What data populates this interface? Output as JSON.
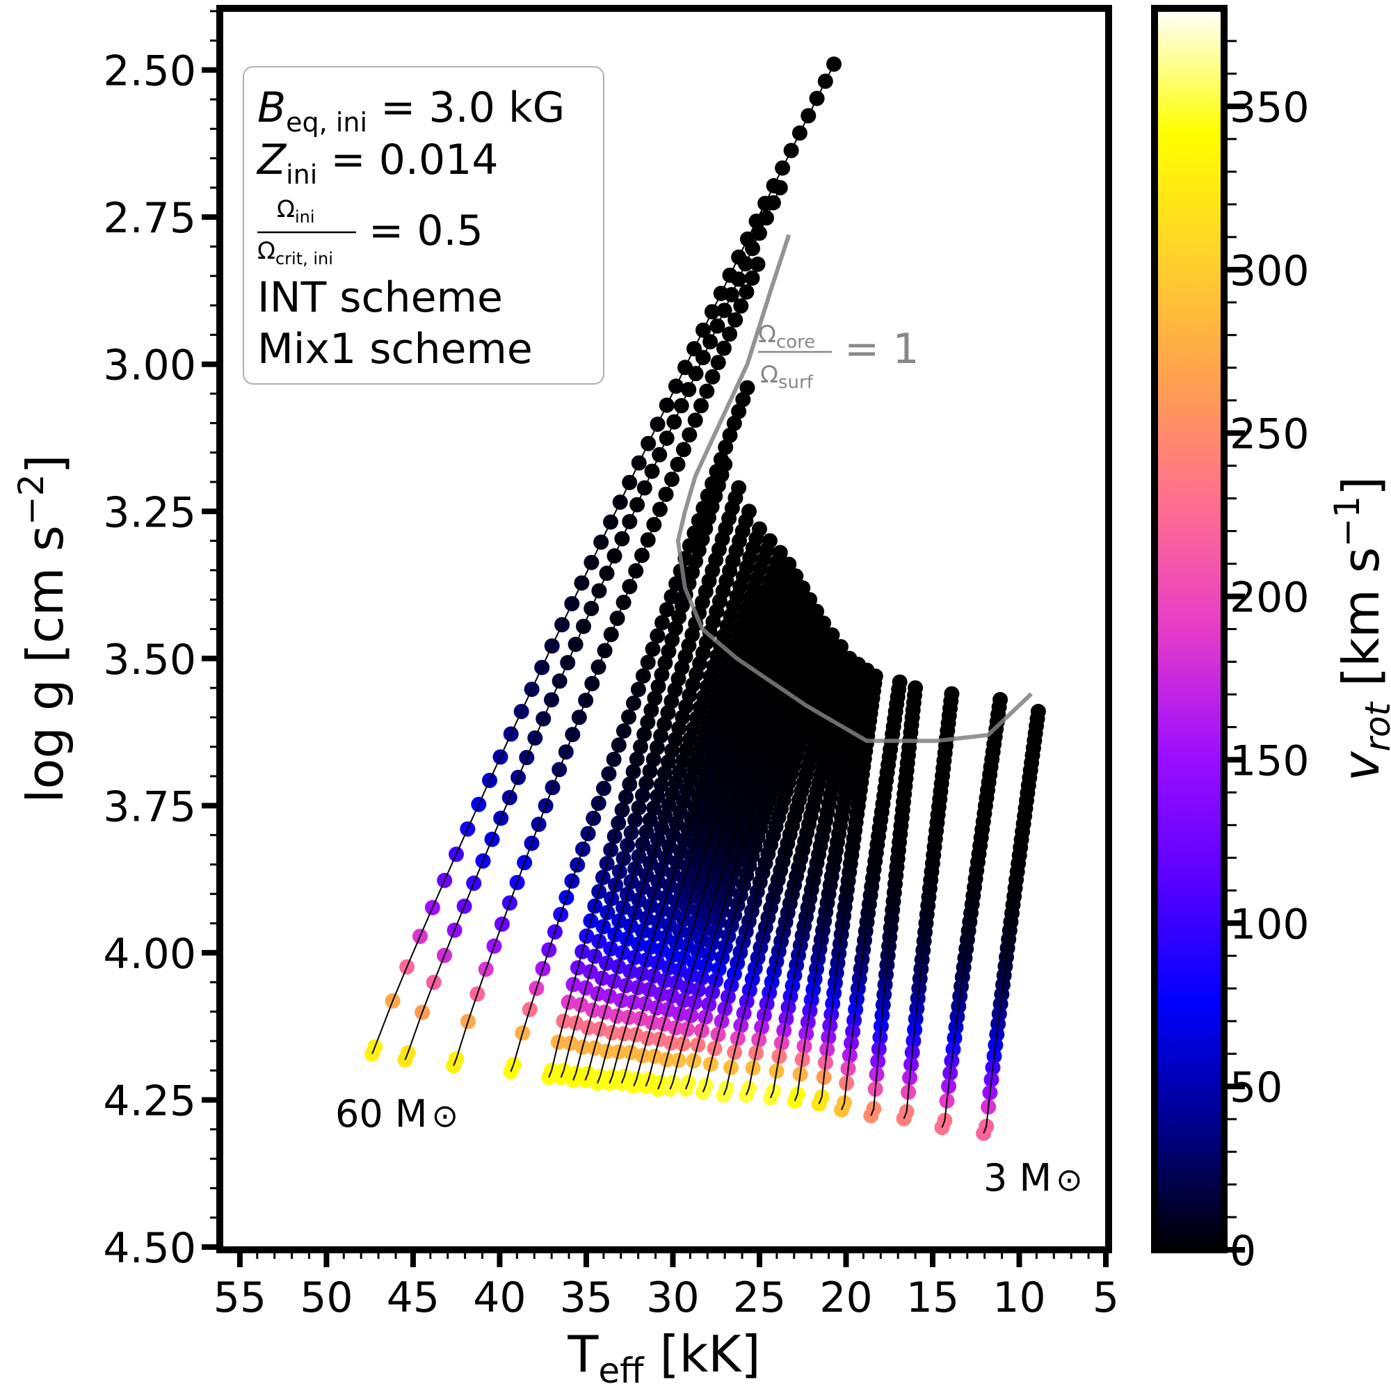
{
  "chart_data": {
    "type": "scatter",
    "xlabel": "T",
    "xlabel_sub": "eff",
    "xlabel_unit": " [kK]",
    "ylabel": "log g [cm s",
    "ylabel_sup": "−2",
    "ylabel_end": "]",
    "xlim": [
      56,
      5
    ],
    "ylim": [
      4.5,
      2.4
    ],
    "xticks": [
      "55",
      "50",
      "45",
      "40",
      "35",
      "30",
      "25",
      "20",
      "15",
      "10",
      "5"
    ],
    "xtick_values": [
      55,
      50,
      45,
      40,
      35,
      30,
      25,
      20,
      15,
      10,
      5
    ],
    "yticks": [
      "2.50",
      "2.75",
      "3.00",
      "3.25",
      "3.50",
      "3.75",
      "4.00",
      "4.25",
      "4.50"
    ],
    "ytick_values": [
      2.5,
      2.75,
      3.0,
      3.25,
      3.5,
      3.75,
      4.0,
      4.25,
      4.5
    ],
    "colorbar": {
      "label": "v",
      "label_sub": "rot",
      "label_unit": " [km s",
      "label_sup": "−1",
      "label_end": "]",
      "range": [
        0,
        380
      ],
      "ticks": [
        "0",
        "50",
        "100",
        "150",
        "200",
        "250",
        "300",
        "350"
      ],
      "tick_values": [
        0,
        50,
        100,
        150,
        200,
        250,
        300,
        350
      ],
      "colormap": "gnuplot2",
      "stops": [
        "#000000",
        "#00008c",
        "#0000ff",
        "#5b00ff",
        "#9e0eff",
        "#e63cc8",
        "#ff6e90",
        "#ffa050",
        "#ffd22a",
        "#ffff00",
        "#ffffff"
      ]
    },
    "legend": {
      "placement": "top-left",
      "b_label": "B",
      "b_sub": "eq, ini",
      "b_value": " =  3.0 kG",
      "z_label": "Z",
      "z_sub": "ini",
      "z_value": " =  0.014",
      "omega_num": "Ω",
      "omega_num_sub": "ini",
      "omega_den": "Ω",
      "omega_den_sub": "crit, ini",
      "omega_value": "= 0.5",
      "line4": "INT scheme",
      "line5": "Mix1 scheme"
    },
    "annotations": {
      "mass_high": "60 M",
      "mass_low": "3 M",
      "sun": "⊙",
      "omega_core": "Ω",
      "omega_core_sub": "core",
      "omega_surf": "Ω",
      "omega_surf_sub": "surf",
      "omega_eq": "= 1"
    },
    "omega_line": {
      "name": "Ω_core/Ω_surf = 1",
      "color": "#808080",
      "x": [
        23.3,
        24.3,
        25.7,
        27.6,
        28.7,
        29.3,
        29.7,
        29.3,
        28.3,
        26.3,
        22.3,
        18.8,
        14.8,
        11.8,
        9.3
      ],
      "y": [
        2.78,
        2.87,
        3.0,
        3.12,
        3.19,
        3.25,
        3.3,
        3.38,
        3.45,
        3.5,
        3.58,
        3.64,
        3.64,
        3.63,
        3.56
      ]
    },
    "series": [
      {
        "zams": [
          47.2,
          4.16
        ],
        "tams": [
          20.7,
          2.49
        ],
        "v0": 330
      },
      {
        "zams": [
          45.3,
          4.17
        ],
        "tams": [
          23.8,
          2.7
        ],
        "v0": 320
      },
      {
        "zams": [
          42.5,
          4.18
        ],
        "tams": [
          25.1,
          2.83
        ],
        "v0": 330
      },
      {
        "zams": [
          39.2,
          4.19
        ],
        "tams": [
          25.7,
          3.04
        ],
        "v0": 340
      },
      {
        "zams": [
          37.0,
          4.2
        ],
        "tams": [
          27.0,
          3.17
        ],
        "v0": 340
      },
      {
        "zams": [
          36.3,
          4.2
        ],
        "tams": [
          26.2,
          3.21
        ],
        "v0": 340
      },
      {
        "zams": [
          35.6,
          4.205
        ],
        "tams": [
          25.6,
          3.25
        ],
        "v0": 340
      },
      {
        "zams": [
          34.9,
          4.205
        ],
        "tams": [
          25.0,
          3.28
        ],
        "v0": 340
      },
      {
        "zams": [
          34.2,
          4.21
        ],
        "tams": [
          24.4,
          3.3
        ],
        "v0": 345
      },
      {
        "zams": [
          33.5,
          4.21
        ],
        "tams": [
          23.8,
          3.32
        ],
        "v0": 345
      },
      {
        "zams": [
          32.8,
          4.21
        ],
        "tams": [
          23.3,
          3.34
        ],
        "v0": 345
      },
      {
        "zams": [
          32.1,
          4.215
        ],
        "tams": [
          22.9,
          3.36
        ],
        "v0": 345
      },
      {
        "zams": [
          31.4,
          4.215
        ],
        "tams": [
          22.5,
          3.38
        ],
        "v0": 345
      },
      {
        "zams": [
          30.7,
          4.22
        ],
        "tams": [
          22.1,
          3.4
        ],
        "v0": 345
      },
      {
        "zams": [
          30.0,
          4.22
        ],
        "tams": [
          21.7,
          3.42
        ],
        "v0": 350
      },
      {
        "zams": [
          29.1,
          4.22
        ],
        "tams": [
          21.3,
          3.44
        ],
        "v0": 350
      },
      {
        "zams": [
          28.1,
          4.225
        ],
        "tams": [
          20.8,
          3.46
        ],
        "v0": 350
      },
      {
        "zams": [
          26.9,
          4.23
        ],
        "tams": [
          20.3,
          3.48
        ],
        "v0": 350
      },
      {
        "zams": [
          25.6,
          4.23
        ],
        "tams": [
          19.8,
          3.5
        ],
        "v0": 350
      },
      {
        "zams": [
          24.2,
          4.235
        ],
        "tams": [
          19.3,
          3.51
        ],
        "v0": 350
      },
      {
        "zams": [
          22.8,
          4.24
        ],
        "tams": [
          18.8,
          3.52
        ],
        "v0": 340
      },
      {
        "zams": [
          21.4,
          4.245
        ],
        "tams": [
          18.3,
          3.53
        ],
        "v0": 320
      },
      {
        "zams": [
          20.1,
          4.255
        ],
        "tams": [
          16.9,
          3.54
        ],
        "v0": 290
      },
      {
        "zams": [
          18.4,
          4.265
        ],
        "tams": [
          16.0,
          3.55
        ],
        "v0": 250
      },
      {
        "zams": [
          16.5,
          4.27
        ],
        "tams": [
          13.9,
          3.56
        ],
        "v0": 240
      },
      {
        "zams": [
          14.3,
          4.285
        ],
        "tams": [
          11.1,
          3.57
        ],
        "v0": 230
      },
      {
        "zams": [
          11.9,
          4.295
        ],
        "tams": [
          8.9,
          3.59
        ],
        "v0": 220
      }
    ]
  }
}
